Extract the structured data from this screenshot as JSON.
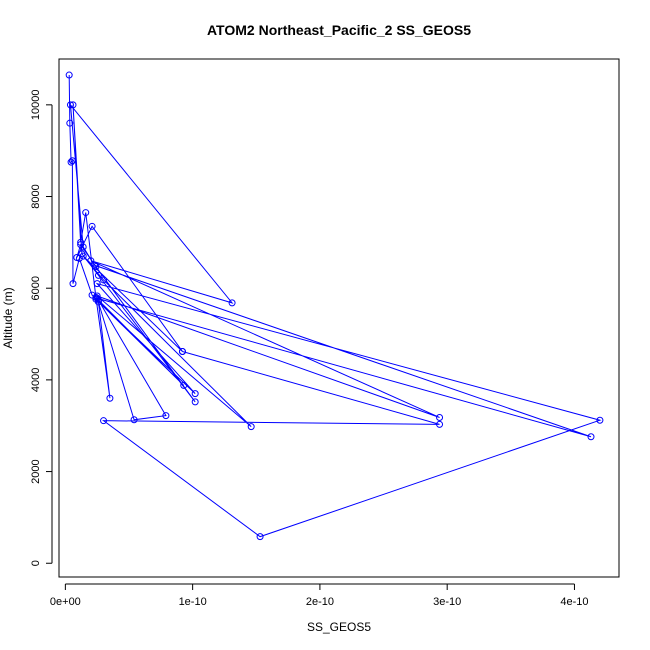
{
  "chart_data": {
    "type": "line",
    "title": "ATOM2 Northeast_Pacific_2 SS_GEOS5",
    "xlabel": "SS_GEOS5",
    "ylabel": "Altitude (m)",
    "xlim": [
      -5e-12,
      4.35e-10
    ],
    "ylim": [
      -300,
      11000
    ],
    "x_ticks": [
      0,
      1e-10,
      2e-10,
      3e-10,
      4e-10
    ],
    "x_tick_labels": [
      "0e+00",
      "1e-10",
      "2e-10",
      "3e-10",
      "4e-10"
    ],
    "y_ticks": [
      0,
      2000,
      4000,
      6000,
      8000,
      10000
    ],
    "y_tick_labels": [
      "0",
      "2000",
      "4000",
      "6000",
      "8000",
      "10000"
    ],
    "y_tick_rotation": "vertical",
    "grid": false,
    "marker": "open-circle",
    "color": "#0000ff",
    "series": [
      {
        "x": [
          3e-12,
          3.5e-12,
          4.5e-12,
          5.5e-12,
          6e-12,
          1.1e-11,
          2.1e-11,
          2.6e-11,
          3.5e-11,
          2.4e-11,
          1.6e-11,
          1.2e-11,
          6e-12,
          1.3e-11,
          2.6e-11,
          1.02e-10,
          2.4e-11,
          1.2e-11,
          9e-12,
          2.1e-11,
          9.2e-11,
          1.4e-11,
          3e-11,
          1.46e-10,
          2.5e-11,
          2.94e-10,
          2e-11,
          1.31e-10,
          4e-12,
          1.4e-11,
          2.3e-11,
          4.13e-10,
          2.5e-11,
          5.4e-11,
          7.9e-11,
          2.6e-11,
          9.3e-11,
          2.4e-11,
          1.02e-10,
          2.5e-11,
          4.2e-10,
          1.53e-10,
          3e-11,
          2.94e-10,
          9.2e-11
        ],
        "y": [
          10650,
          9600,
          8750,
          8780,
          6100,
          6650,
          5850,
          5700,
          3600,
          5800,
          7650,
          7000,
          10000,
          6750,
          6280,
          3520,
          6470,
          6950,
          6670,
          7350,
          4620,
          6700,
          6180,
          2980,
          5830,
          3180,
          6600,
          5680,
          10000,
          6900,
          6500,
          2760,
          5780,
          3130,
          3220,
          5740,
          3880,
          5760,
          3700,
          6100,
          3120,
          580,
          3110,
          3030,
          4620
        ]
      }
    ]
  }
}
